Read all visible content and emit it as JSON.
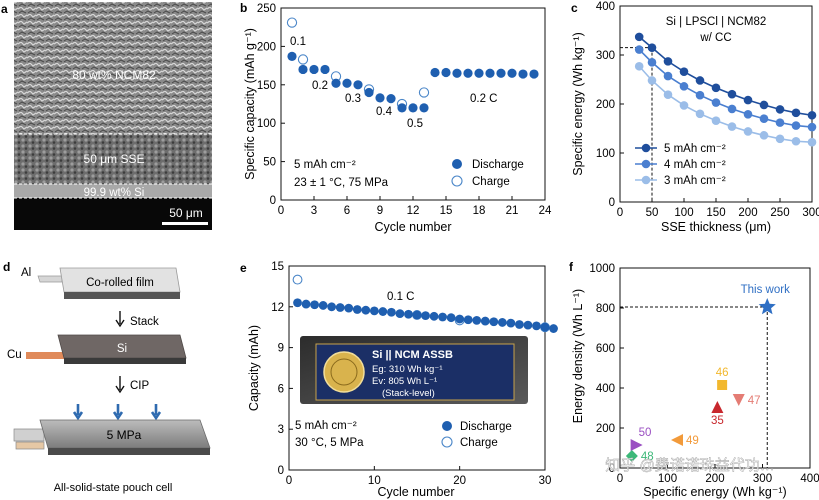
{
  "panel_labels": {
    "a": "a",
    "b": "b",
    "c": "c",
    "d": "d",
    "e": "e",
    "f": "f"
  },
  "panel_a": {
    "layer_top": "80 wt% NCM82",
    "layer_mid": "50 μm SSE",
    "layer_bottom": "99.9 wt% Si",
    "scalebar": "50 μm"
  },
  "panel_d": {
    "al_label": "Al",
    "film_label": "Co-rolled film",
    "stack_label": "Stack",
    "cu_label": "Cu",
    "si_label": "Si",
    "cip_label": "CIP",
    "pressure_label": "5 MPa",
    "caption": "All-solid-state pouch cell"
  },
  "panel_e_photo": {
    "title": "Si || NCM ASSB",
    "line1": "Eg: 310 Wh kg⁻¹",
    "line2": "Ev: 805 Wh L⁻¹",
    "line3": "(Stack-level)"
  },
  "watermark": "知乎 @费诺诺珠益代功…",
  "chart_data": [
    {
      "type": "scatter",
      "panel": "b",
      "xlabel": "Cycle number",
      "ylabel": "Specific capacity (mAh g⁻¹)",
      "xlim": [
        0,
        24
      ],
      "ylim": [
        0,
        250
      ],
      "xticks": [
        "0",
        "3",
        "6",
        "9",
        "12",
        "15",
        "18",
        "21",
        "24"
      ],
      "yticks": [
        "0",
        "50",
        "100",
        "150",
        "200",
        "250"
      ],
      "series": [
        {
          "name": "Discharge",
          "x": [
            1,
            2,
            3,
            4,
            5,
            6,
            7,
            8,
            9,
            10,
            11,
            12,
            13,
            14,
            15,
            16,
            17,
            18,
            19,
            20,
            21,
            22,
            23
          ],
          "y": [
            187,
            170,
            170,
            170,
            152,
            152,
            150,
            140,
            133,
            132,
            120,
            120,
            120,
            166,
            166,
            165,
            165,
            165,
            165,
            165,
            165,
            164,
            164
          ]
        },
        {
          "name": "Charge",
          "x": [
            1,
            2,
            5,
            8,
            11,
            13
          ],
          "y": [
            231,
            183,
            161,
            144,
            125,
            140
          ]
        }
      ],
      "annotations": [
        "0.1",
        "0.2",
        "0.3",
        "0.4",
        "0.5",
        "0.2 C"
      ],
      "conditions": [
        "5 mAh cm⁻²",
        "23 ± 1 °C, 75 MPa"
      ]
    },
    {
      "type": "line",
      "panel": "c",
      "title": "Si | LPSCl | NCM82",
      "subtitle": "w/ CC",
      "xlabel": "SSE thickness (μm)",
      "ylabel": "Specific energy (Wh kg⁻¹)",
      "xlim": [
        0,
        300
      ],
      "ylim": [
        0,
        400
      ],
      "xticks": [
        "0",
        "50",
        "100",
        "150",
        "200",
        "250",
        "300"
      ],
      "yticks": [
        "0",
        "100",
        "200",
        "300",
        "400"
      ],
      "x": [
        30,
        50,
        75,
        100,
        125,
        150,
        175,
        200,
        225,
        250,
        275,
        300
      ],
      "series": [
        {
          "name": "5 mAh cm⁻²",
          "color": "#1f4e9c",
          "y": [
            337,
            315,
            287,
            266,
            248,
            233,
            220,
            208,
            198,
            189,
            182,
            177
          ]
        },
        {
          "name": "4 mAh cm⁻²",
          "color": "#4a7fd0",
          "y": [
            311,
            285,
            257,
            236,
            218,
            203,
            190,
            179,
            170,
            162,
            156,
            153
          ]
        },
        {
          "name": "3 mAh cm⁻²",
          "color": "#9bbde8",
          "y": [
            277,
            248,
            219,
            197,
            180,
            166,
            154,
            144,
            136,
            129,
            124,
            122
          ]
        }
      ],
      "marker_value": 315,
      "marker_x": 50
    },
    {
      "type": "scatter",
      "panel": "e",
      "xlabel": "Cycle number",
      "ylabel": "Capacity (mAh)",
      "xlim": [
        0,
        30
      ],
      "ylim": [
        0,
        15
      ],
      "xticks": [
        "0",
        "10",
        "20",
        "30"
      ],
      "yticks": [
        "0",
        "3",
        "6",
        "9",
        "12",
        "15"
      ],
      "series": [
        {
          "name": "Discharge",
          "x": [
            1,
            2,
            3,
            4,
            5,
            6,
            7,
            8,
            9,
            10,
            11,
            12,
            13,
            14,
            15,
            16,
            17,
            18,
            19,
            20,
            21,
            22,
            23,
            24,
            25,
            26,
            27,
            28,
            29,
            30,
            31
          ],
          "y": [
            12.3,
            12.2,
            12.15,
            12.1,
            12.0,
            11.95,
            11.9,
            11.8,
            11.75,
            11.7,
            11.65,
            11.6,
            11.5,
            11.45,
            11.4,
            11.35,
            11.3,
            11.25,
            11.2,
            11.1,
            11.05,
            11.0,
            10.95,
            10.9,
            10.85,
            10.8,
            10.7,
            10.65,
            10.6,
            10.5,
            10.4
          ]
        },
        {
          "name": "Charge",
          "x": [
            1,
            15,
            20,
            30
          ],
          "y": [
            14.0,
            11.4,
            11.0,
            10.5
          ]
        }
      ],
      "annotations": [
        "0.1 C"
      ],
      "conditions": [
        "5 mAh cm⁻²",
        "30 °C, 5 MPa"
      ]
    },
    {
      "type": "scatter",
      "panel": "f",
      "xlabel": "Specific energy (Wh kg⁻¹)",
      "ylabel": "Energy density (Wh L⁻¹)",
      "xlim": [
        0,
        400
      ],
      "ylim": [
        0,
        1000
      ],
      "xticks": [
        "0",
        "100",
        "200",
        "300",
        "400"
      ],
      "yticks": [
        "0",
        "200",
        "400",
        "600",
        "800",
        "1000"
      ],
      "points": [
        {
          "label": "This work",
          "x": 310,
          "y": 805,
          "color": "#2f6fc4",
          "marker": "star"
        },
        {
          "label": "46",
          "x": 215,
          "y": 415,
          "color": "#f2b82e",
          "marker": "square"
        },
        {
          "label": "47",
          "x": 250,
          "y": 340,
          "color": "#e47c74",
          "marker": "triangle-down"
        },
        {
          "label": "35",
          "x": 205,
          "y": 305,
          "color": "#c8282d",
          "marker": "triangle-up"
        },
        {
          "label": "50",
          "x": 35,
          "y": 115,
          "color": "#9a4fc2",
          "marker": "triangle-right"
        },
        {
          "label": "49",
          "x": 120,
          "y": 140,
          "color": "#f29a3a",
          "marker": "triangle-left"
        },
        {
          "label": "48",
          "x": 25,
          "y": 60,
          "color": "#3cb878",
          "marker": "diamond"
        }
      ]
    }
  ],
  "legend_b": {
    "discharge": "Discharge",
    "charge": "Charge"
  },
  "legend_e": {
    "discharge": "Discharge",
    "charge": "Charge"
  }
}
